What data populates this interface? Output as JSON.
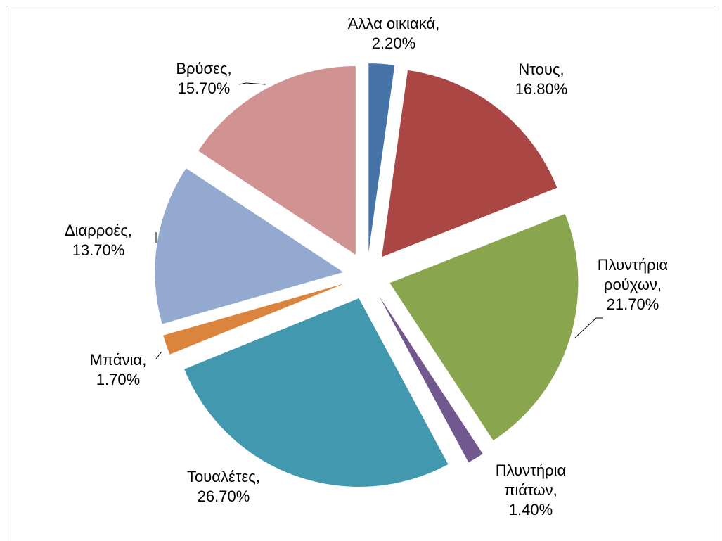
{
  "chart_data": {
    "type": "pie",
    "categories": [
      "Άλλα οικιακά,",
      "Ντους,",
      "Πλυντήρια ρούχων,",
      "Πλυντήρια πιάτων,",
      "Τουαλέτες,",
      "Μπάνια,",
      "Διαρροές,",
      "Βρύσες,"
    ],
    "values": [
      2.2,
      16.8,
      21.7,
      1.4,
      26.7,
      1.7,
      13.7,
      15.7
    ],
    "value_labels": [
      "2.20%",
      "16.80%",
      "21.70%",
      "1.40%",
      "26.70%",
      "1.70%",
      "13.70%",
      "15.70%"
    ],
    "colors": [
      "#4572a7",
      "#aa4643",
      "#89a54e",
      "#71588f",
      "#4198af",
      "#db843d",
      "#93a9cf",
      "#d19392"
    ],
    "exploded": true
  }
}
